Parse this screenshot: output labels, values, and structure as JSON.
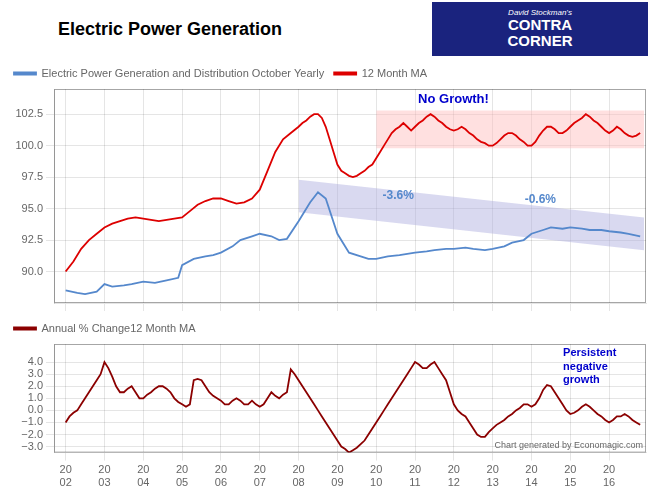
{
  "chart_data": [
    {
      "type": "line",
      "title": "Electric Power Generation",
      "xlim": [
        2001.7,
        2016.95
      ],
      "xticks": [
        2002,
        2003,
        2004,
        2005,
        2006,
        2007,
        2008,
        2009,
        2010,
        2011,
        2012,
        2013,
        2014,
        2015,
        2016
      ],
      "tick_labels": "y",
      "ylim": [
        87.5,
        104.5
      ],
      "yticks": [
        {
          "value": 90.0,
          "label": "90.0"
        },
        92.5,
        {
          "value": 95.0,
          "label": "95.0"
        },
        97.5,
        {
          "value": 100.0,
          "label": "100.0"
        },
        102.5
      ],
      "grid": true,
      "legend": "upper left",
      "series": [
        {
          "name": "Electric Power Generation and Distribution October Yearly",
          "color": "#5588cc",
          "x": [
            2002.0,
            2002.3,
            2002.5,
            2002.8,
            2003.0,
            2003.2,
            2003.5,
            2003.7,
            2004.0,
            2004.3,
            2004.6,
            2004.9,
            2005.0,
            2005.3,
            2005.6,
            2005.8,
            2006.0,
            2006.3,
            2006.5,
            2006.8,
            2007.0,
            2007.3,
            2007.5,
            2007.7,
            2008.0,
            2008.3,
            2008.5,
            2008.7,
            2009.0,
            2009.3,
            2009.6,
            2009.8,
            2010.0,
            2010.3,
            2010.6,
            2010.8,
            2011.0,
            2011.3,
            2011.5,
            2011.8,
            2012.0,
            2012.3,
            2012.5,
            2012.8,
            2013.0,
            2013.3,
            2013.5,
            2013.8,
            2014.0,
            2014.3,
            2014.5,
            2014.8,
            2015.0,
            2015.3,
            2015.5,
            2015.8,
            2016.0,
            2016.3,
            2016.5,
            2016.8
          ],
          "values": [
            88.5,
            88.3,
            88.2,
            88.4,
            89.0,
            88.8,
            88.9,
            89.0,
            89.2,
            89.1,
            89.3,
            89.5,
            90.5,
            91.0,
            91.2,
            91.3,
            91.5,
            92.0,
            92.5,
            92.8,
            93.0,
            92.8,
            92.5,
            92.6,
            94.0,
            95.5,
            96.3,
            95.8,
            93.0,
            91.5,
            91.2,
            91.0,
            91.0,
            91.2,
            91.3,
            91.4,
            91.5,
            91.6,
            91.7,
            91.8,
            91.8,
            91.9,
            91.8,
            91.7,
            91.8,
            92.0,
            92.3,
            92.5,
            93.0,
            93.3,
            93.5,
            93.4,
            93.5,
            93.4,
            93.3,
            93.3,
            93.2,
            93.1,
            93.0,
            92.8
          ]
        },
        {
          "name": "12 Month MA",
          "color": "#dd0000",
          "x": [
            2002.0,
            2002.2,
            2002.4,
            2002.6,
            2002.8,
            2003.0,
            2003.2,
            2003.4,
            2003.6,
            2003.8,
            2004.0,
            2004.2,
            2004.4,
            2004.6,
            2004.8,
            2005.0,
            2005.2,
            2005.4,
            2005.6,
            2005.8,
            2006.0,
            2006.2,
            2006.4,
            2006.6,
            2006.8,
            2007.0,
            2007.2,
            2007.4,
            2007.6,
            2007.8,
            2008.0,
            2008.1,
            2008.2,
            2008.3,
            2008.4,
            2008.5,
            2008.6,
            2008.7,
            2008.8,
            2008.9,
            2009.0,
            2009.1,
            2009.2,
            2009.3,
            2009.4,
            2009.5,
            2009.6,
            2009.7,
            2009.8,
            2009.9,
            2010.0,
            2010.1,
            2010.2,
            2010.3,
            2010.4,
            2010.5,
            2010.6,
            2010.7,
            2010.8,
            2010.9,
            2011.0,
            2011.1,
            2011.2,
            2011.3,
            2011.4,
            2011.5,
            2011.6,
            2011.7,
            2011.8,
            2011.9,
            2012.0,
            2012.1,
            2012.2,
            2012.3,
            2012.4,
            2012.5,
            2012.6,
            2012.7,
            2012.8,
            2012.9,
            2013.0,
            2013.1,
            2013.2,
            2013.3,
            2013.4,
            2013.5,
            2013.6,
            2013.7,
            2013.8,
            2013.9,
            2014.0,
            2014.1,
            2014.2,
            2014.3,
            2014.4,
            2014.5,
            2014.6,
            2014.7,
            2014.8,
            2014.9,
            2015.0,
            2015.1,
            2015.2,
            2015.3,
            2015.4,
            2015.5,
            2015.6,
            2015.7,
            2015.8,
            2015.9,
            2016.0,
            2016.1,
            2016.2,
            2016.3,
            2016.4,
            2016.5,
            2016.6,
            2016.7,
            2016.8
          ],
          "values": [
            90.0,
            90.8,
            91.8,
            92.5,
            93.0,
            93.5,
            93.8,
            94.0,
            94.2,
            94.3,
            94.2,
            94.1,
            94.0,
            94.1,
            94.2,
            94.3,
            94.8,
            95.3,
            95.6,
            95.8,
            95.8,
            95.6,
            95.4,
            95.5,
            95.8,
            96.5,
            98.0,
            99.5,
            100.5,
            101.0,
            101.5,
            101.8,
            102.0,
            102.3,
            102.5,
            102.5,
            102.2,
            101.5,
            100.5,
            99.5,
            98.5,
            98.0,
            97.8,
            97.6,
            97.5,
            97.6,
            97.8,
            98.0,
            98.3,
            98.5,
            99.0,
            99.5,
            100.0,
            100.5,
            101.0,
            101.3,
            101.5,
            101.8,
            101.5,
            101.2,
            101.5,
            101.8,
            102.0,
            102.3,
            102.5,
            102.3,
            102.0,
            101.8,
            101.5,
            101.3,
            101.2,
            101.3,
            101.5,
            101.3,
            101.0,
            100.8,
            100.5,
            100.3,
            100.2,
            100.0,
            100.0,
            100.2,
            100.5,
            100.8,
            101.0,
            101.0,
            100.8,
            100.5,
            100.3,
            100.0,
            100.0,
            100.3,
            100.8,
            101.2,
            101.5,
            101.5,
            101.3,
            101.0,
            101.0,
            101.2,
            101.5,
            101.8,
            102.0,
            102.2,
            102.5,
            102.3,
            102.0,
            101.8,
            101.5,
            101.2,
            101.0,
            101.2,
            101.5,
            101.3,
            101.0,
            100.8,
            100.7,
            100.8,
            101.0
          ]
        }
      ],
      "bands": [
        {
          "x": [
            2010.0,
            2016.9
          ],
          "low": [
            99.8,
            99.8
          ],
          "high": [
            102.8,
            102.8
          ],
          "color": "#ffbbbb"
        },
        {
          "x": [
            2008.0,
            2016.9
          ],
          "low": [
            94.7,
            91.7
          ],
          "high": [
            97.3,
            94.3
          ],
          "color": "#aaaadd"
        }
      ],
      "annotations": [
        {
          "text": "No Growth!",
          "color": "#0000cc"
        },
        {
          "text": "-3.6%",
          "color": "#5588cc"
        },
        {
          "text": "-0.6%",
          "color": "#5588cc"
        },
        {
          "text": "David Stockman's"
        },
        {
          "text": "CONTRA"
        },
        {
          "text": "CORNER"
        }
      ]
    },
    {
      "type": "line",
      "xlim": [
        2001.7,
        2016.95
      ],
      "xticks": [
        {
          "value": 2002,
          "label": "20\n02"
        },
        {
          "value": 2003,
          "label": "20\n03"
        },
        {
          "value": 2004,
          "label": "20\n04"
        },
        {
          "value": 2005,
          "label": "20\n05"
        },
        {
          "value": 2006,
          "label": "20\n06"
        },
        {
          "value": 2007,
          "label": "20\n07"
        },
        {
          "value": 2008,
          "label": "20\n08"
        },
        {
          "value": 2009,
          "label": "20\n09"
        },
        {
          "value": 2010,
          "label": "20\n10"
        },
        {
          "value": 2011,
          "label": "20\n11"
        },
        {
          "value": 2012,
          "label": "20\n12"
        },
        {
          "value": 2013,
          "label": "20\n13"
        },
        {
          "value": 2014,
          "label": "20\n14"
        },
        {
          "value": 2015,
          "label": "20\n15"
        },
        {
          "value": 2016,
          "label": "20\n16"
        }
      ],
      "ylim": [
        -3.5,
        5.5
      ],
      "yticks": [
        {
          "value": -3.0,
          "label": "−3.0"
        },
        {
          "value": -2.0,
          "label": "−2.0"
        },
        {
          "value": -1.0,
          "label": "−1.0"
        },
        {
          "value": 0.0,
          "label": "0.0"
        },
        {
          "value": 1.0,
          "label": "1.0"
        },
        {
          "value": 2.0,
          "label": "2.0"
        },
        {
          "value": 3.0,
          "label": "3.0"
        },
        {
          "value": 4.0,
          "label": "4.0"
        }
      ],
      "grid": true,
      "legend": "upper left",
      "series": [
        {
          "name": "Annual % Change12 Month MA",
          "color": "#8b0000",
          "x": [
            2002.0,
            2002.1,
            2002.2,
            2002.3,
            2002.4,
            2002.5,
            2002.6,
            2002.7,
            2002.8,
            2002.9,
            2003.0,
            2003.1,
            2003.2,
            2003.3,
            2003.4,
            2003.5,
            2003.6,
            2003.7,
            2003.8,
            2003.9,
            2004.0,
            2004.1,
            2004.2,
            2004.3,
            2004.4,
            2004.5,
            2004.6,
            2004.7,
            2004.8,
            2004.9,
            2005.0,
            2005.1,
            2005.2,
            2005.3,
            2005.4,
            2005.5,
            2005.6,
            2005.7,
            2005.8,
            2005.9,
            2006.0,
            2006.1,
            2006.2,
            2006.3,
            2006.4,
            2006.5,
            2006.6,
            2006.7,
            2006.8,
            2006.9,
            2007.0,
            2007.1,
            2007.2,
            2007.3,
            2007.4,
            2007.5,
            2007.6,
            2007.7,
            2007.8,
            2007.9,
            2008.0,
            2008.1,
            2008.2,
            2008.3,
            2008.4,
            2008.5,
            2008.6,
            2008.7,
            2008.8,
            2008.9,
            2009.0,
            2009.1,
            2009.2,
            2009.3,
            2009.4,
            2009.5,
            2009.6,
            2009.7,
            2009.8,
            2009.9,
            2010.0,
            2010.1,
            2010.2,
            2010.3,
            2010.4,
            2010.5,
            2010.6,
            2010.7,
            2010.8,
            2010.9,
            2011.0,
            2011.1,
            2011.2,
            2011.3,
            2011.4,
            2011.5,
            2011.6,
            2011.7,
            2011.8,
            2011.9,
            2012.0,
            2012.1,
            2012.2,
            2012.3,
            2012.4,
            2012.5,
            2012.6,
            2012.7,
            2012.8,
            2012.9,
            2013.0,
            2013.1,
            2013.2,
            2013.3,
            2013.4,
            2013.5,
            2013.6,
            2013.7,
            2013.8,
            2013.9,
            2014.0,
            2014.1,
            2014.2,
            2014.3,
            2014.4,
            2014.5,
            2014.6,
            2014.7,
            2014.8,
            2014.9,
            2015.0,
            2015.1,
            2015.2,
            2015.3,
            2015.4,
            2015.5,
            2015.6,
            2015.7,
            2015.8,
            2015.9,
            2016.0,
            2016.1,
            2016.2,
            2016.3,
            2016.4,
            2016.5,
            2016.6,
            2016.7,
            2016.8
          ],
          "values": [
            -1.0,
            -0.5,
            -0.2,
            0.0,
            0.5,
            1.0,
            1.5,
            2.0,
            2.5,
            3.0,
            4.0,
            3.5,
            2.8,
            2.0,
            1.5,
            1.5,
            1.8,
            2.0,
            1.5,
            1.0,
            1.0,
            1.3,
            1.5,
            1.8,
            2.0,
            2.0,
            1.8,
            1.5,
            1.0,
            0.7,
            0.5,
            0.3,
            0.5,
            2.5,
            2.6,
            2.5,
            2.0,
            1.5,
            1.2,
            1.0,
            0.8,
            0.5,
            0.5,
            0.8,
            1.0,
            0.8,
            0.5,
            0.5,
            0.8,
            0.5,
            0.3,
            0.5,
            1.0,
            1.5,
            1.2,
            1.0,
            1.3,
            1.5,
            3.4,
            3.0,
            2.5,
            2.0,
            1.5,
            1.0,
            0.5,
            0.0,
            -0.5,
            -1.0,
            -1.5,
            -2.0,
            -2.5,
            -3.0,
            -3.2,
            -3.5,
            -3.3,
            -3.1,
            -2.8,
            -2.5,
            -2.0,
            -1.5,
            -1.0,
            -0.5,
            0.0,
            0.5,
            1.0,
            1.5,
            2.0,
            2.5,
            3.0,
            3.5,
            4.0,
            3.8,
            3.5,
            3.5,
            3.8,
            4.0,
            3.5,
            3.0,
            2.5,
            1.5,
            0.5,
            0.0,
            -0.3,
            -0.5,
            -1.0,
            -1.5,
            -2.0,
            -2.2,
            -2.2,
            -1.8,
            -1.5,
            -1.2,
            -1.0,
            -0.8,
            -0.5,
            -0.3,
            0.0,
            0.2,
            0.5,
            0.5,
            0.3,
            0.5,
            1.0,
            1.7,
            2.1,
            2.0,
            1.5,
            1.0,
            0.5,
            0.0,
            -0.3,
            -0.2,
            0.0,
            0.3,
            0.5,
            0.3,
            0.0,
            -0.3,
            -0.5,
            -0.8,
            -1.0,
            -0.8,
            -0.5,
            -0.5,
            -0.3,
            -0.5,
            -0.8,
            -1.0,
            -1.2
          ]
        }
      ],
      "annotations": [
        {
          "text": "Persistent\nnegative\ngrowth",
          "color": "#0000cc"
        },
        {
          "text": "Chart generated by Economagic.com",
          "color": "#666666"
        }
      ]
    }
  ]
}
